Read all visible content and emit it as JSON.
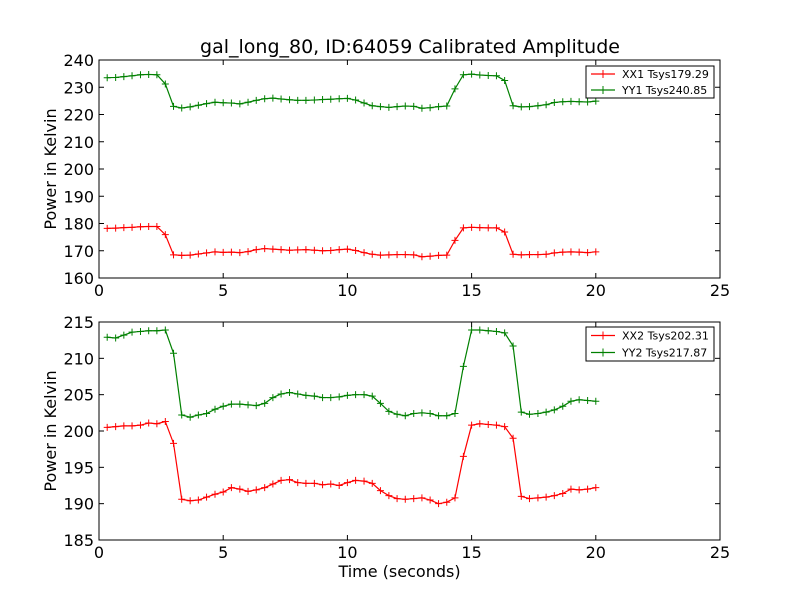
{
  "title": "gal_long_80, ID:64059 Calibrated Amplitude",
  "chart_data": [
    {
      "type": "line",
      "title": "gal_long_80, ID:64059 Calibrated Amplitude",
      "xlabel": "",
      "ylabel": "Power in Kelvin",
      "xlim": [
        0,
        25
      ],
      "ylim": [
        160,
        240
      ],
      "xticks": [
        0,
        5,
        10,
        15,
        20,
        25
      ],
      "yticks": [
        160,
        170,
        180,
        190,
        200,
        210,
        220,
        230,
        240
      ],
      "grid": false,
      "legend_position": "top-right",
      "x": [
        0.33,
        0.67,
        1.0,
        1.33,
        1.67,
        2.0,
        2.33,
        2.67,
        3.0,
        3.33,
        3.67,
        4.0,
        4.33,
        4.67,
        5.0,
        5.33,
        5.67,
        6.0,
        6.33,
        6.67,
        7.0,
        7.33,
        7.67,
        8.0,
        8.33,
        8.67,
        9.0,
        9.33,
        9.67,
        10.0,
        10.33,
        10.67,
        11.0,
        11.33,
        11.67,
        12.0,
        12.33,
        12.67,
        13.0,
        13.33,
        13.67,
        14.0,
        14.33,
        14.67,
        15.0,
        15.33,
        15.67,
        16.0,
        16.33,
        16.67,
        17.0,
        17.33,
        17.67,
        18.0,
        18.33,
        18.67,
        19.0,
        19.33,
        19.67,
        20.0
      ],
      "series": [
        {
          "name": "XX1 Tsys179.29",
          "color": "#ff0000",
          "values": [
            178.2,
            178.3,
            178.5,
            178.6,
            178.8,
            178.9,
            178.9,
            175.9,
            168.5,
            168.3,
            168.4,
            168.8,
            169.2,
            169.6,
            169.4,
            169.5,
            169.3,
            169.7,
            170.4,
            170.8,
            170.6,
            170.4,
            170.2,
            170.3,
            170.4,
            170.2,
            170.0,
            170.1,
            170.4,
            170.6,
            170.1,
            169.3,
            168.7,
            168.4,
            168.5,
            168.6,
            168.6,
            168.5,
            167.8,
            168.0,
            168.3,
            168.4,
            173.8,
            178.4,
            178.6,
            178.5,
            178.4,
            178.4,
            176.9,
            168.7,
            168.5,
            168.6,
            168.6,
            168.7,
            169.2,
            169.5,
            169.6,
            169.5,
            169.3,
            169.6
          ]
        },
        {
          "name": "YY1 Tsys240.85",
          "color": "#008000",
          "values": [
            233.5,
            233.6,
            233.9,
            234.2,
            234.6,
            234.7,
            234.6,
            231.2,
            223.0,
            222.4,
            222.8,
            223.4,
            224.0,
            224.5,
            224.3,
            224.2,
            223.9,
            224.5,
            225.2,
            225.8,
            226.0,
            225.7,
            225.4,
            225.2,
            225.2,
            225.3,
            225.5,
            225.6,
            225.8,
            225.9,
            225.3,
            224.2,
            223.2,
            222.9,
            222.6,
            222.9,
            223.1,
            223.0,
            222.3,
            222.5,
            222.9,
            223.1,
            229.4,
            234.6,
            234.8,
            234.5,
            234.3,
            234.2,
            232.5,
            223.2,
            222.8,
            222.9,
            223.2,
            223.6,
            224.4,
            224.7,
            224.8,
            224.7,
            224.6,
            224.9
          ]
        }
      ]
    },
    {
      "type": "line",
      "title": "",
      "xlabel": "Time (seconds)",
      "ylabel": "Power in Kelvin",
      "xlim": [
        0,
        25
      ],
      "ylim": [
        185,
        215
      ],
      "xticks": [
        0,
        5,
        10,
        15,
        20,
        25
      ],
      "yticks": [
        185,
        190,
        195,
        200,
        205,
        210,
        215
      ],
      "grid": false,
      "legend_position": "top-right",
      "x": [
        0.33,
        0.67,
        1.0,
        1.33,
        1.67,
        2.0,
        2.33,
        2.67,
        3.0,
        3.33,
        3.67,
        4.0,
        4.33,
        4.67,
        5.0,
        5.33,
        5.67,
        6.0,
        6.33,
        6.67,
        7.0,
        7.33,
        7.67,
        8.0,
        8.33,
        8.67,
        9.0,
        9.33,
        9.67,
        10.0,
        10.33,
        10.67,
        11.0,
        11.33,
        11.67,
        12.0,
        12.33,
        12.67,
        13.0,
        13.33,
        13.67,
        14.0,
        14.33,
        14.67,
        15.0,
        15.33,
        15.67,
        16.0,
        16.33,
        16.67,
        17.0,
        17.33,
        17.67,
        18.0,
        18.33,
        18.67,
        19.0,
        19.33,
        19.67,
        20.0
      ],
      "series": [
        {
          "name": "XX2 Tsys202.31",
          "color": "#ff0000",
          "values": [
            200.5,
            200.6,
            200.7,
            200.7,
            200.8,
            201.1,
            201.0,
            201.3,
            198.3,
            190.6,
            190.4,
            190.5,
            190.9,
            191.3,
            191.6,
            192.2,
            192.0,
            191.7,
            191.9,
            192.2,
            192.7,
            193.2,
            193.3,
            192.9,
            192.8,
            192.8,
            192.6,
            192.7,
            192.5,
            192.9,
            193.2,
            193.1,
            192.8,
            191.8,
            191.1,
            190.7,
            190.6,
            190.7,
            190.8,
            190.5,
            190.0,
            190.2,
            190.8,
            196.5,
            200.8,
            201.0,
            200.9,
            200.8,
            200.6,
            199.0,
            191.0,
            190.7,
            190.8,
            190.9,
            191.1,
            191.4,
            192.0,
            191.9,
            192.0,
            192.2
          ]
        },
        {
          "name": "YY2 Tsys217.87",
          "color": "#008000",
          "values": [
            212.9,
            212.8,
            213.2,
            213.6,
            213.7,
            213.8,
            213.8,
            213.9,
            210.7,
            202.2,
            201.9,
            202.2,
            202.4,
            203.0,
            203.4,
            203.7,
            203.7,
            203.6,
            203.5,
            203.8,
            204.6,
            205.1,
            205.3,
            205.1,
            204.9,
            204.8,
            204.6,
            204.6,
            204.7,
            204.9,
            205.0,
            205.0,
            204.8,
            203.8,
            202.7,
            202.3,
            202.1,
            202.4,
            202.5,
            202.4,
            202.1,
            202.1,
            202.4,
            208.9,
            213.9,
            213.9,
            213.8,
            213.7,
            213.5,
            211.7,
            202.6,
            202.3,
            202.4,
            202.6,
            202.9,
            203.4,
            204.1,
            204.3,
            204.2,
            204.1
          ]
        }
      ]
    }
  ]
}
